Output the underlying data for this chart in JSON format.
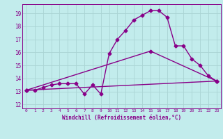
{
  "title": "",
  "xlabel": "Windchill (Refroidissement éolien,°C)",
  "ylabel": "",
  "xlim": [
    -0.5,
    23.5
  ],
  "ylim": [
    11.7,
    19.7
  ],
  "yticks": [
    12,
    13,
    14,
    15,
    16,
    17,
    18,
    19
  ],
  "xticks": [
    0,
    1,
    2,
    3,
    4,
    5,
    6,
    7,
    8,
    9,
    10,
    11,
    12,
    13,
    14,
    15,
    16,
    17,
    18,
    19,
    20,
    21,
    22,
    23
  ],
  "bg_color": "#c2ecec",
  "grid_color": "#aad4d4",
  "line_color": "#880088",
  "line1_x": [
    0,
    1,
    2,
    3,
    4,
    5,
    6,
    7,
    8,
    9,
    10,
    11,
    12,
    13,
    14,
    15,
    16,
    17,
    18,
    19,
    20,
    21,
    22,
    23
  ],
  "line1_y": [
    13.1,
    13.1,
    13.3,
    13.5,
    13.6,
    13.6,
    13.6,
    12.8,
    13.5,
    12.8,
    15.9,
    17.0,
    17.7,
    18.5,
    18.85,
    19.2,
    19.2,
    18.7,
    16.5,
    16.5,
    15.5,
    15.0,
    14.2,
    13.8
  ],
  "line2_x": [
    0,
    23
  ],
  "line2_y": [
    13.1,
    13.8
  ],
  "line3_x": [
    0,
    15,
    23
  ],
  "line3_y": [
    13.1,
    16.1,
    13.8
  ],
  "marker": "D",
  "markersize": 2.5,
  "linewidth": 1.0
}
